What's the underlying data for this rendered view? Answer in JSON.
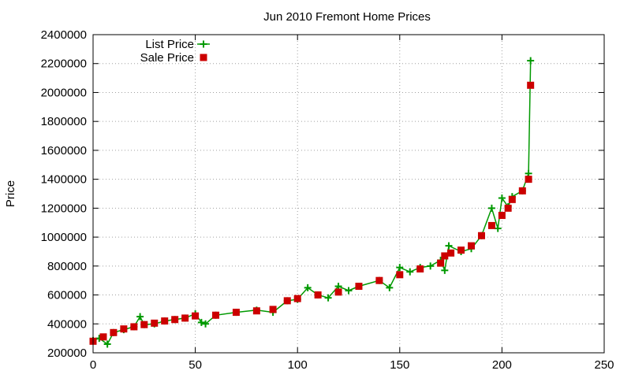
{
  "chart_data": {
    "type": "scatter",
    "title": "Jun 2010 Fremont Home Prices",
    "xlabel": "",
    "ylabel": "Price",
    "xlim": [
      0,
      250
    ],
    "ylim": [
      200000,
      2400000
    ],
    "x_ticks": [
      "0",
      "50",
      "100",
      "150",
      "200",
      "250"
    ],
    "y_ticks": [
      "200000",
      "400000",
      "600000",
      "800000",
      "1000000",
      "1200000",
      "1400000",
      "1600000",
      "1800000",
      "2000000",
      "2200000",
      "2400000"
    ],
    "grid": true,
    "legend_position": "top-left",
    "series": [
      {
        "name": "List Price",
        "marker": "plus",
        "line": true,
        "color": "#009900",
        "points": [
          [
            0,
            285000
          ],
          [
            3,
            300000
          ],
          [
            7,
            260000
          ],
          [
            10,
            340000
          ],
          [
            15,
            360000
          ],
          [
            20,
            380000
          ],
          [
            23,
            450000
          ],
          [
            25,
            395000
          ],
          [
            30,
            400000
          ],
          [
            35,
            420000
          ],
          [
            40,
            430000
          ],
          [
            45,
            440000
          ],
          [
            50,
            470000
          ],
          [
            53,
            410000
          ],
          [
            55,
            400000
          ],
          [
            60,
            460000
          ],
          [
            70,
            480000
          ],
          [
            80,
            495000
          ],
          [
            88,
            480000
          ],
          [
            95,
            560000
          ],
          [
            100,
            570000
          ],
          [
            105,
            650000
          ],
          [
            110,
            600000
          ],
          [
            115,
            580000
          ],
          [
            120,
            660000
          ],
          [
            125,
            630000
          ],
          [
            130,
            660000
          ],
          [
            140,
            700000
          ],
          [
            145,
            650000
          ],
          [
            150,
            790000
          ],
          [
            155,
            760000
          ],
          [
            160,
            790000
          ],
          [
            165,
            800000
          ],
          [
            170,
            840000
          ],
          [
            172,
            770000
          ],
          [
            174,
            940000
          ],
          [
            180,
            900000
          ],
          [
            185,
            920000
          ],
          [
            190,
            1010000
          ],
          [
            195,
            1200000
          ],
          [
            198,
            1060000
          ],
          [
            200,
            1270000
          ],
          [
            203,
            1210000
          ],
          [
            205,
            1280000
          ],
          [
            210,
            1320000
          ],
          [
            213,
            1440000
          ],
          [
            214,
            2220000
          ]
        ]
      },
      {
        "name": "Sale Price",
        "marker": "square",
        "line": false,
        "color": "#cc0000",
        "points": [
          [
            0,
            280000
          ],
          [
            5,
            310000
          ],
          [
            10,
            340000
          ],
          [
            15,
            365000
          ],
          [
            20,
            380000
          ],
          [
            25,
            395000
          ],
          [
            30,
            405000
          ],
          [
            35,
            420000
          ],
          [
            40,
            430000
          ],
          [
            45,
            440000
          ],
          [
            50,
            455000
          ],
          [
            60,
            460000
          ],
          [
            70,
            480000
          ],
          [
            80,
            490000
          ],
          [
            88,
            500000
          ],
          [
            95,
            560000
          ],
          [
            100,
            575000
          ],
          [
            110,
            600000
          ],
          [
            120,
            620000
          ],
          [
            130,
            660000
          ],
          [
            140,
            700000
          ],
          [
            150,
            740000
          ],
          [
            160,
            780000
          ],
          [
            170,
            820000
          ],
          [
            172,
            870000
          ],
          [
            175,
            890000
          ],
          [
            180,
            910000
          ],
          [
            185,
            940000
          ],
          [
            190,
            1010000
          ],
          [
            195,
            1080000
          ],
          [
            200,
            1150000
          ],
          [
            203,
            1200000
          ],
          [
            205,
            1260000
          ],
          [
            210,
            1320000
          ],
          [
            213,
            1400000
          ],
          [
            214,
            2050000
          ]
        ]
      }
    ]
  }
}
